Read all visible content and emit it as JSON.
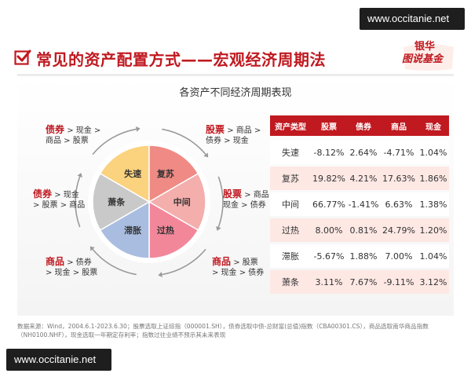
{
  "watermark": {
    "text": "www.occitanie.net"
  },
  "header": {
    "title": "常见的资产配置方式——宏观经济周期法"
  },
  "logo": {
    "top": "银华",
    "bottom": "图说基金"
  },
  "panel": {
    "title": "各资产不同经济周期表现"
  },
  "cycle": {
    "phases": [
      "失速",
      "复苏",
      "中间",
      "过热",
      "滞胀",
      "萧条"
    ],
    "colors": {
      "失速": "#fbd27d",
      "复苏": "#f08a84",
      "中间": "#f4aeac",
      "过热": "#f2879a",
      "滞胀": "#a9bde0",
      "萧条": "#c9c9c9"
    }
  },
  "labels": [
    {
      "head": "债券",
      "line1": " > 现金 >",
      "line2": "商品 > 股票"
    },
    {
      "head": "股票",
      "line1": " > 商品 >",
      "line2": "债券 > 现金"
    },
    {
      "head": "债券",
      "line1": " > 现金",
      "line2": "> 股票 > 商品"
    },
    {
      "head": "股票",
      "line1": " > 商品 >",
      "line2": "现金 > 债券"
    },
    {
      "head": "商品",
      "line1": " > 债券",
      "line2": "> 现金 > 股票"
    },
    {
      "head": "商品",
      "line1": " > 股票",
      "line2": "> 现金 > 债券"
    }
  ],
  "table": {
    "headers": [
      "资产类型",
      "股票",
      "债券",
      "商品",
      "现金"
    ],
    "rows": [
      [
        "失速",
        "-8.12%",
        "2.64%",
        "-4.71%",
        "1.04%"
      ],
      [
        "复苏",
        "19.82%",
        "4.21%",
        "17.63%",
        "1.86%"
      ],
      [
        "中间",
        "66.77%",
        "-1.41%",
        "6.63%",
        "1.38%"
      ],
      [
        "过热",
        "8.00%",
        "0.81%",
        "24.79%",
        "1.20%"
      ],
      [
        "滞胀",
        "-5.67%",
        "1.88%",
        "7.00%",
        "1.04%"
      ],
      [
        "萧条",
        "3.11%",
        "7.67%",
        "-9.11%",
        "3.12%"
      ]
    ]
  },
  "source": {
    "line1": "数据来源：Wind，2004.6.1-2023.6.30；股票选取上证综指（000001.SH），债券选取中债-总财富(总值)指数（CBA00301.CS），商品选取南华商品指数",
    "line2": "（NH0100.NHF），现金选取一年期定存利率；指数过往业绩不预示其未来表现"
  }
}
